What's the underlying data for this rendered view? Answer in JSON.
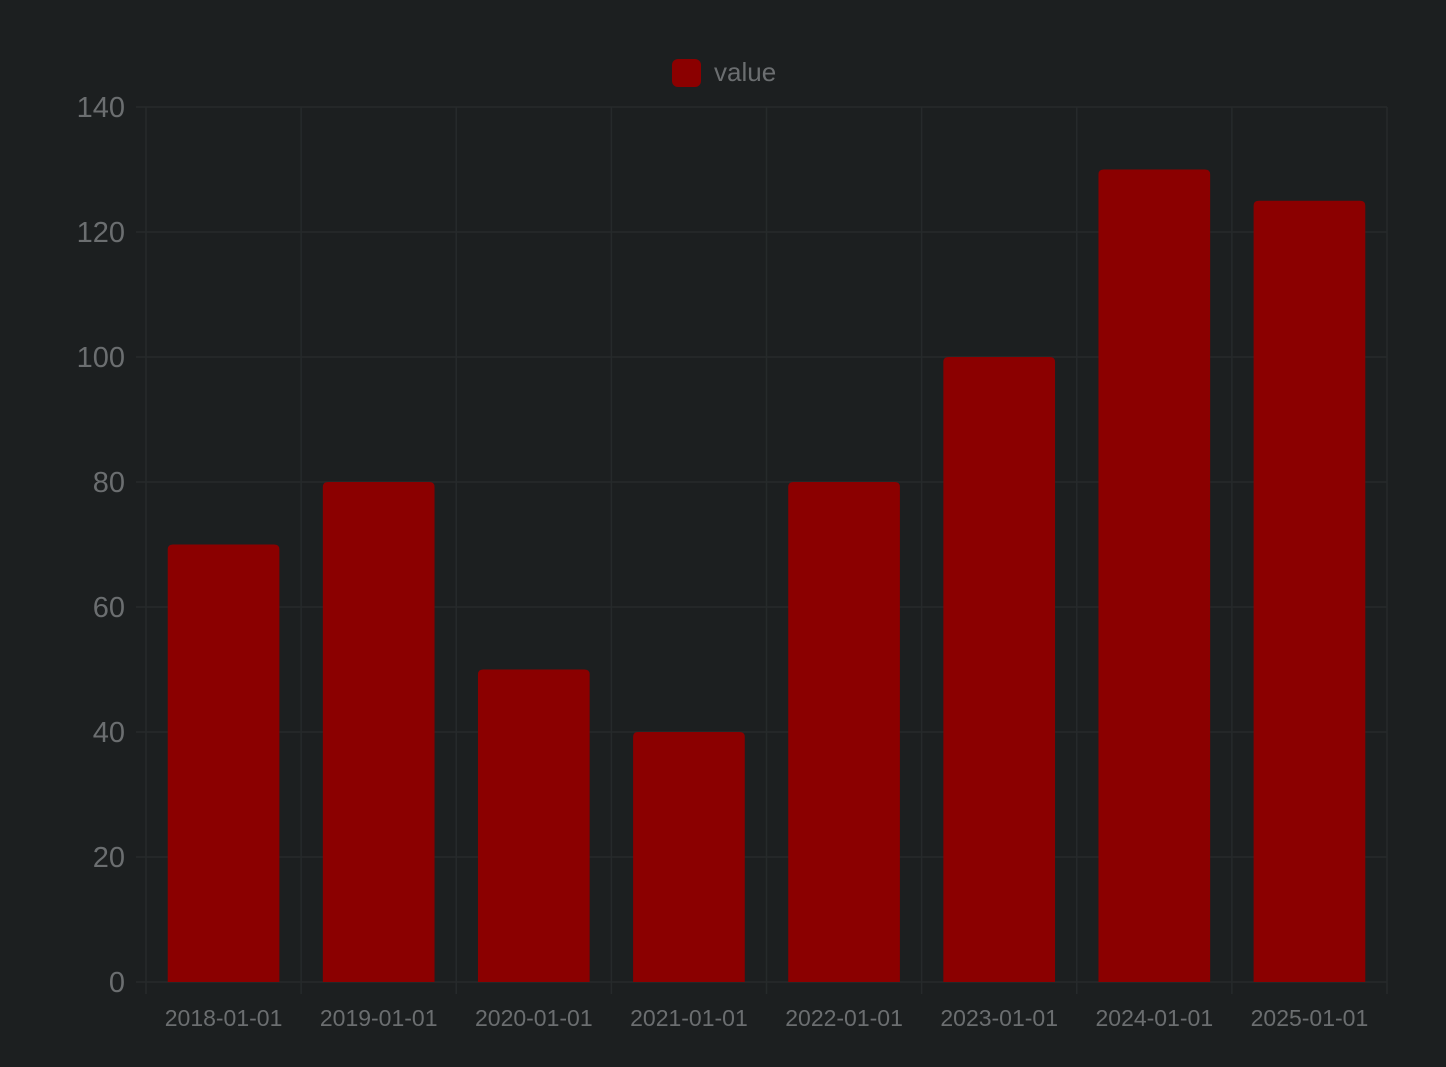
{
  "colors": {
    "background": "#1c1f20",
    "bar": "#8b0000",
    "grid": "#262a2b",
    "text": "#6b6e70"
  },
  "chart_data": {
    "type": "bar",
    "title": "",
    "xlabel": "",
    "ylabel": "",
    "categories": [
      "2018-01-01",
      "2019-01-01",
      "2020-01-01",
      "2021-01-01",
      "2022-01-01",
      "2023-01-01",
      "2024-01-01",
      "2025-01-01"
    ],
    "series": [
      {
        "name": "value",
        "color": "#8b0000",
        "values": [
          70,
          80,
          50,
          40,
          80,
          100,
          130,
          125
        ]
      }
    ],
    "ylim": [
      0,
      140
    ],
    "yticks": [
      0,
      20,
      40,
      60,
      80,
      100,
      120,
      140
    ],
    "grid": true,
    "legend": "top-center"
  }
}
